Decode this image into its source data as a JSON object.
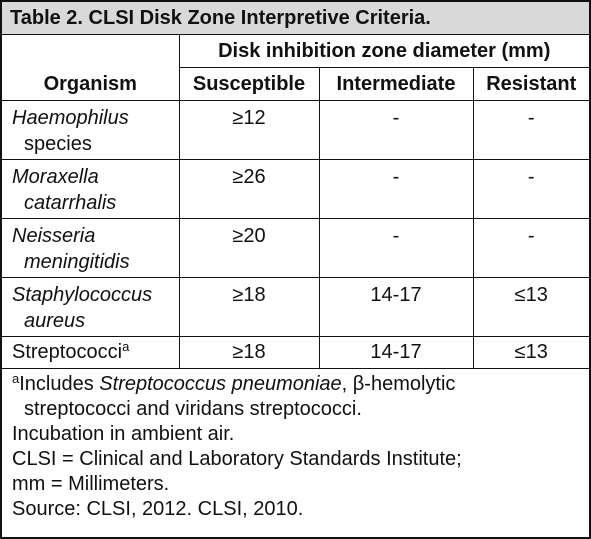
{
  "table": {
    "title": "Table 2. CLSI Disk Zone Interpretive Criteria.",
    "group_header": "Disk inhibition zone diameter (mm)",
    "columns": [
      "Organism",
      "Susceptible",
      "Intermediate",
      "Resistant"
    ],
    "rows": [
      [
        {
          "italic": "Haemophilus",
          "text": "species"
        },
        "≥12",
        "-",
        "-"
      ],
      [
        {
          "italic": "Moraxella catarrhalis"
        },
        "≥26",
        "-",
        "-"
      ],
      [
        {
          "italic": "Neisseria meningitidis"
        },
        "≥20",
        "-",
        "-"
      ],
      [
        {
          "italic": "Staphylococcus aureus"
        },
        "≥18",
        "14-17",
        "≤13"
      ],
      [
        {
          "text": "Streptococci",
          "sup": "a"
        },
        "≥18",
        "14-17",
        "≤13"
      ]
    ]
  },
  "footnotes": [
    {
      "marker": "a",
      "before": "Includes ",
      "italic": "Streptococcus pneumoniae",
      "after": ", β-hemolytic streptococci and viridans streptococci."
    },
    "Incubation in ambient air.",
    "CLSI = Clinical and Laboratory Standards Institute;",
    "mm = Millimeters.",
    "Source: CLSI, 2012. CLSI, 2010."
  ]
}
